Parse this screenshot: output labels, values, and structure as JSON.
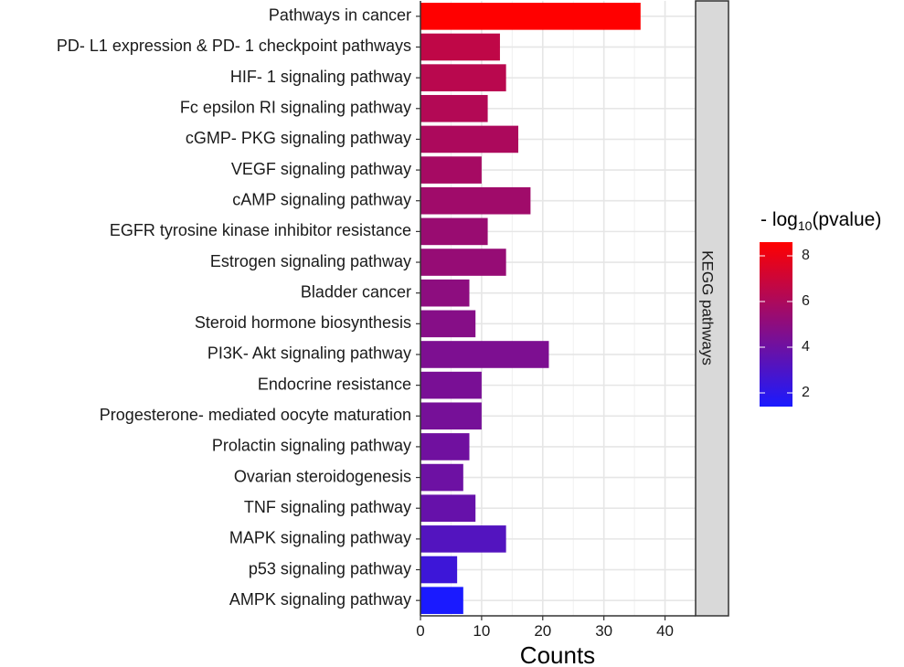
{
  "chart_data": {
    "type": "bar",
    "orientation": "horizontal",
    "xlabel": "Counts",
    "xlim": [
      0,
      45
    ],
    "xticks": [
      0,
      10,
      20,
      30,
      40
    ],
    "grid": true,
    "facet_label": "KEGG pathways",
    "color_metric": {
      "title_prefix": "- log",
      "title_sub": "10",
      "title_suffix": "(pvalue)",
      "range": [
        1.4,
        8.6
      ],
      "ticks": [
        2,
        4,
        6,
        8
      ],
      "low_color": "#1a1aff",
      "high_color": "#ff0000"
    },
    "bars": [
      {
        "label": "Pathways in cancer",
        "count": 36,
        "neglog10p": 8.6
      },
      {
        "label": "PD- L1 expression & PD- 1 checkpoint pathways",
        "count": 13,
        "neglog10p": 6.6
      },
      {
        "label": "HIF- 1 signaling pathway",
        "count": 14,
        "neglog10p": 6.4
      },
      {
        "label": "Fc epsilon RI signaling pathway",
        "count": 11,
        "neglog10p": 6.2
      },
      {
        "label": "cGMP- PKG signaling pathway",
        "count": 16,
        "neglog10p": 6.0
      },
      {
        "label": "VEGF signaling pathway",
        "count": 10,
        "neglog10p": 5.8
      },
      {
        "label": "cAMP signaling pathway",
        "count": 18,
        "neglog10p": 5.6
      },
      {
        "label": "EGFR tyrosine kinase inhibitor resistance",
        "count": 11,
        "neglog10p": 5.4
      },
      {
        "label": "Estrogen signaling pathway",
        "count": 14,
        "neglog10p": 5.3
      },
      {
        "label": "Bladder cancer",
        "count": 8,
        "neglog10p": 5.0
      },
      {
        "label": "Steroid hormone biosynthesis",
        "count": 9,
        "neglog10p": 4.8
      },
      {
        "label": "PI3K- Akt signaling pathway",
        "count": 21,
        "neglog10p": 4.5
      },
      {
        "label": "Endocrine resistance",
        "count": 10,
        "neglog10p": 4.4
      },
      {
        "label": "Progesterone- mediated oocyte maturation",
        "count": 10,
        "neglog10p": 4.3
      },
      {
        "label": "Prolactin signaling pathway",
        "count": 8,
        "neglog10p": 4.1
      },
      {
        "label": "Ovarian steroidogenesis",
        "count": 7,
        "neglog10p": 4.0
      },
      {
        "label": "TNF signaling pathway",
        "count": 9,
        "neglog10p": 3.8
      },
      {
        "label": "MAPK signaling pathway",
        "count": 14,
        "neglog10p": 3.2
      },
      {
        "label": "p53 signaling pathway",
        "count": 6,
        "neglog10p": 2.5
      },
      {
        "label": "AMPK signaling pathway",
        "count": 7,
        "neglog10p": 1.4
      }
    ]
  }
}
